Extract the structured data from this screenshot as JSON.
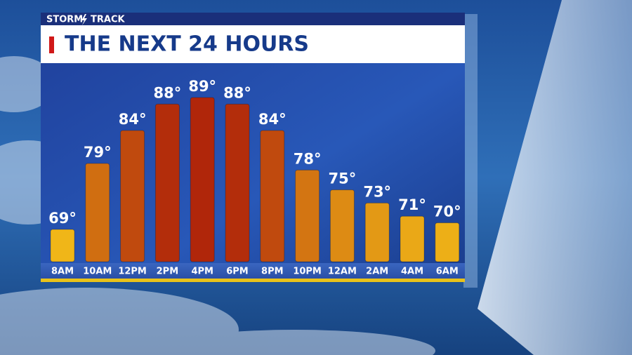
{
  "brand": [
    "STORM",
    "TRACK"
  ],
  "chart_data": {
    "type": "bar",
    "title": "THE NEXT 24 HOURS",
    "categories": [
      "8AM",
      "10AM",
      "12PM",
      "2PM",
      "4PM",
      "6PM",
      "8PM",
      "10PM",
      "12AM",
      "2AM",
      "4AM",
      "6AM"
    ],
    "values": [
      69,
      79,
      84,
      88,
      89,
      88,
      84,
      78,
      75,
      73,
      71,
      70
    ],
    "value_labels": [
      "69°",
      "79°",
      "84°",
      "88°",
      "89°",
      "88°",
      "84°",
      "78°",
      "75°",
      "73°",
      "71°",
      "70°"
    ]
  }
}
